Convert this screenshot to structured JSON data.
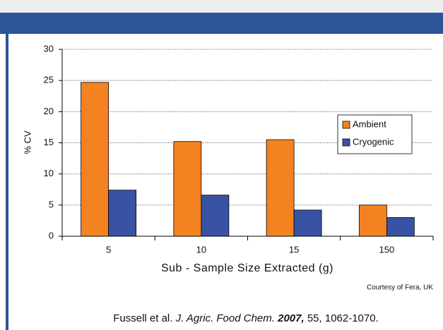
{
  "chart_data": {
    "type": "bar",
    "categories": [
      "5",
      "10",
      "15",
      "150"
    ],
    "series": [
      {
        "name": "Ambient",
        "color": "#f58220",
        "values": [
          24.7,
          15.2,
          15.5,
          5.0
        ]
      },
      {
        "name": "Cryogenic",
        "color": "#3953a4",
        "values": [
          7.4,
          6.6,
          4.2,
          3.0
        ]
      }
    ],
    "y_label": "% CV",
    "x_label": "Sub - Sample Size Extracted (g)",
    "ylim": [
      0,
      30
    ],
    "yticks": [
      0,
      5,
      10,
      15,
      20,
      25,
      30
    ],
    "grid": true,
    "legend": "right"
  },
  "credit": "Courtesy of Fera, UK",
  "citation": {
    "authors": "Fussell et al.",
    "journal": "J. Agric. Food Chem.",
    "year": "2007,",
    "rest": "55, 1062-1070."
  }
}
